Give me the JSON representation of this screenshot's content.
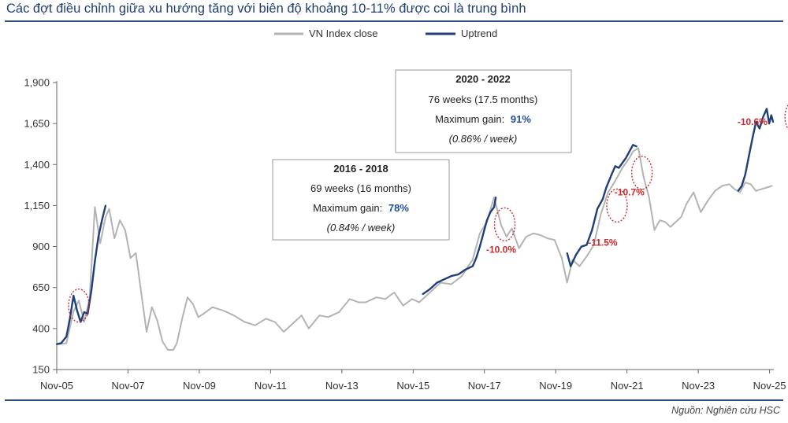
{
  "title": "Các đợt điều chỉnh giữa xu hướng tăng với biên độ khoảng 10-11% được coi là trung bình",
  "source": "Nguồn: Nghiên cứu HSC",
  "colors": {
    "close": "#b3b3b3",
    "uptrend": "#1f3f7a",
    "annotation": "#d0272b",
    "rule": "#2f4f7f",
    "gain": "#1f4e9c"
  },
  "chart_data": {
    "type": "line",
    "title": "Các đợt điều chỉnh giữa xu hướng tăng với biên độ khoảng 10-11% được coi là trung bình",
    "xlabel": "",
    "ylabel": "",
    "x_range": [
      2005.83,
      2025.95
    ],
    "ylim": [
      150,
      1900
    ],
    "yticks": [
      150,
      400,
      650,
      900,
      1150,
      1400,
      1650,
      1900
    ],
    "ytick_labels": [
      "150",
      "400",
      "650",
      "900",
      "1,150",
      "1,400",
      "1,650",
      "1,900"
    ],
    "xticks": [
      2005.83,
      2007.83,
      2009.83,
      2011.83,
      2013.83,
      2015.83,
      2017.83,
      2019.83,
      2021.83,
      2023.83,
      2025.83
    ],
    "xtick_labels": [
      "Nov-05",
      "Nov-07",
      "Nov-09",
      "Nov-11",
      "Nov-13",
      "Nov-15",
      "Nov-17",
      "Nov-19",
      "Nov-21",
      "Nov-23",
      "Nov-25"
    ],
    "legend": {
      "position": "top-center",
      "entries": [
        "VN Index close",
        "Uptrend"
      ]
    },
    "series": [
      {
        "name": "VN Index close",
        "x": [
          2005.83,
          2006.1,
          2006.3,
          2006.45,
          2006.6,
          2006.75,
          2006.9,
          2007.05,
          2007.2,
          2007.3,
          2007.45,
          2007.6,
          2007.75,
          2007.9,
          2008.05,
          2008.2,
          2008.35,
          2008.5,
          2008.65,
          2008.8,
          2008.95,
          2009.1,
          2009.2,
          2009.35,
          2009.5,
          2009.65,
          2009.8,
          2009.95,
          2010.2,
          2010.5,
          2010.8,
          2011.1,
          2011.4,
          2011.7,
          2011.95,
          2012.2,
          2012.45,
          2012.7,
          2012.9,
          2013.2,
          2013.45,
          2013.75,
          2014.05,
          2014.3,
          2014.5,
          2014.8,
          2015.05,
          2015.3,
          2015.55,
          2015.8,
          2016.0,
          2016.3,
          2016.6,
          2016.9,
          2017.2,
          2017.5,
          2017.7,
          2017.9,
          2018.1,
          2018.3,
          2018.45,
          2018.6,
          2018.8,
          2019.0,
          2019.2,
          2019.4,
          2019.6,
          2019.8,
          2020.0,
          2020.15,
          2020.3,
          2020.5,
          2020.7,
          2020.9,
          2021.1,
          2021.3,
          2021.5,
          2021.7,
          2021.9,
          2022.0,
          2022.15,
          2022.3,
          2022.45,
          2022.6,
          2022.75,
          2022.9,
          2023.05,
          2023.2,
          2023.35,
          2023.5,
          2023.7,
          2023.9,
          2024.1,
          2024.3,
          2024.5,
          2024.7,
          2024.85,
          2025.0,
          2025.15,
          2025.3,
          2025.45,
          2025.6,
          2025.75,
          2025.9
        ],
        "values": [
          305,
          310,
          505,
          570,
          440,
          580,
          1140,
          920,
          1080,
          1130,
          950,
          1060,
          1000,
          830,
          860,
          620,
          380,
          530,
          450,
          320,
          270,
          270,
          310,
          460,
          590,
          550,
          470,
          490,
          530,
          510,
          480,
          440,
          420,
          460,
          440,
          380,
          430,
          480,
          400,
          480,
          470,
          500,
          580,
          560,
          560,
          590,
          580,
          620,
          540,
          580,
          560,
          620,
          680,
          670,
          720,
          820,
          980,
          1050,
          1200,
          1030,
          960,
          1010,
          890,
          960,
          980,
          970,
          950,
          940,
          830,
          680,
          820,
          780,
          840,
          910,
          1100,
          1230,
          1300,
          1380,
          1440,
          1480,
          1500,
          1320,
          1200,
          1000,
          1060,
          1050,
          1020,
          1050,
          1080,
          1160,
          1230,
          1110,
          1180,
          1240,
          1270,
          1280,
          1250,
          1230,
          1290,
          1280,
          1240,
          1250,
          1260,
          1270
        ]
      },
      {
        "name": "Uptrend",
        "segments": [
          {
            "x": [
              2005.83,
              2005.95,
              2006.1,
              2006.2,
              2006.3,
              2006.4,
              2006.5,
              2006.6,
              2006.7,
              2006.8,
              2006.9,
              2007.0,
              2007.1,
              2007.2
            ],
            "values": [
              305,
              310,
              350,
              460,
              600,
              510,
              440,
              500,
              490,
              630,
              810,
              960,
              1060,
              1150
            ]
          },
          {
            "x": [
              2016.1,
              2016.3,
              2016.5,
              2016.7,
              2016.9,
              2017.1,
              2017.3,
              2017.5,
              2017.6,
              2017.7,
              2017.8,
              2017.9,
              2018.0,
              2018.1,
              2018.15
            ],
            "values": [
              610,
              640,
              680,
              700,
              720,
              730,
              760,
              780,
              830,
              900,
              980,
              1060,
              1110,
              1140,
              1200
            ]
          },
          {
            "x": [
              2020.15,
              2020.25,
              2020.4,
              2020.55,
              2020.7,
              2020.85,
              2021.0,
              2021.15,
              2021.25,
              2021.4,
              2021.5,
              2021.6,
              2021.7,
              2021.8,
              2021.9,
              2022.0,
              2022.1
            ],
            "values": [
              860,
              780,
              850,
              900,
              910,
              1000,
              1130,
              1190,
              1260,
              1340,
              1390,
              1380,
              1410,
              1440,
              1480,
              1520,
              1510
            ]
          },
          {
            "x": [
              2024.95,
              2025.05,
              2025.15,
              2025.25,
              2025.35,
              2025.45,
              2025.55,
              2025.65,
              2025.75,
              2025.82,
              2025.88,
              2025.93
            ],
            "values": [
              1240,
              1270,
              1340,
              1450,
              1560,
              1660,
              1620,
              1690,
              1740,
              1650,
              1700,
              1660
            ]
          }
        ]
      }
    ],
    "annotations": [
      {
        "label": "-10.0%",
        "x": 2018.3,
        "y": 880
      },
      {
        "label": "-11.5%",
        "x": 2021.15,
        "y": 925
      },
      {
        "label": "-10.7%",
        "x": 2021.9,
        "y": 1230
      },
      {
        "label": "-10.6%",
        "x": 2025.35,
        "y": 1660
      }
    ],
    "highlight_ellipses": [
      {
        "x": 2006.45,
        "y": 540
      },
      {
        "x": 2018.4,
        "y": 1035
      },
      {
        "x": 2021.55,
        "y": 1150
      },
      {
        "x": 2022.25,
        "y": 1350
      },
      {
        "x": 2026.55,
        "y": 1690
      }
    ],
    "info_boxes": [
      {
        "period": "2016 - 2018",
        "duration": "69 weeks (16 months)",
        "gain_label": "Maximum gain:",
        "gain_value": "78%",
        "rate": "(0.84% / week)"
      },
      {
        "period": "2020 - 2022",
        "duration": "76 weeks (17.5 months)",
        "gain_label": "Maximum gain:",
        "gain_value": "91%",
        "rate": "(0.86% / week)"
      }
    ]
  }
}
